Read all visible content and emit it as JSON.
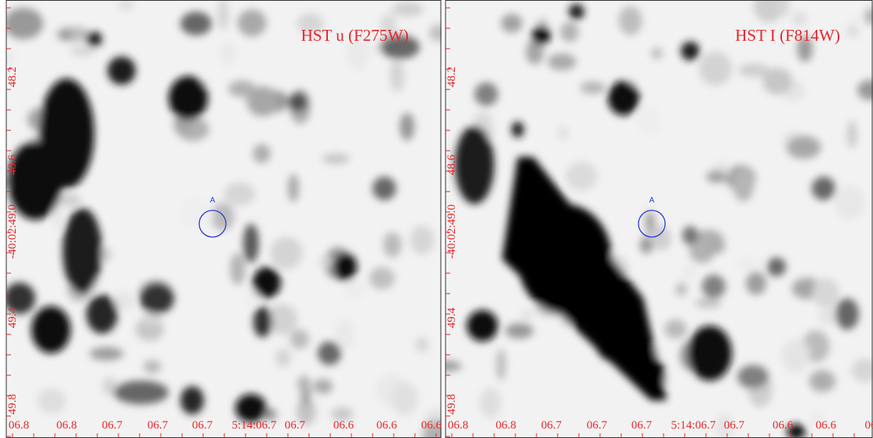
{
  "panels": [
    {
      "title": "HST u (F275W)",
      "marker": "A",
      "x_labels": [
        "06.8",
        "06.8",
        "06.7",
        "06.7",
        "06.7",
        "5:14:06.7",
        "06.7",
        "06.6",
        "06.6",
        "06.6"
      ],
      "y_labels": [
        "48.2",
        "48.6",
        "-40:02:49.0",
        "49.4",
        "49.8"
      ]
    },
    {
      "title": "HST I (F814W)",
      "marker": "A",
      "x_labels": [
        "06.8",
        "06.8",
        "06.7",
        "06.7",
        "06.7",
        "5:14:06.7",
        "06.7",
        "06.6",
        "06.6",
        "06"
      ],
      "y_labels": [
        "48.2",
        "48.6",
        "-40:02:49.0",
        "49.4",
        "49.8"
      ]
    }
  ]
}
